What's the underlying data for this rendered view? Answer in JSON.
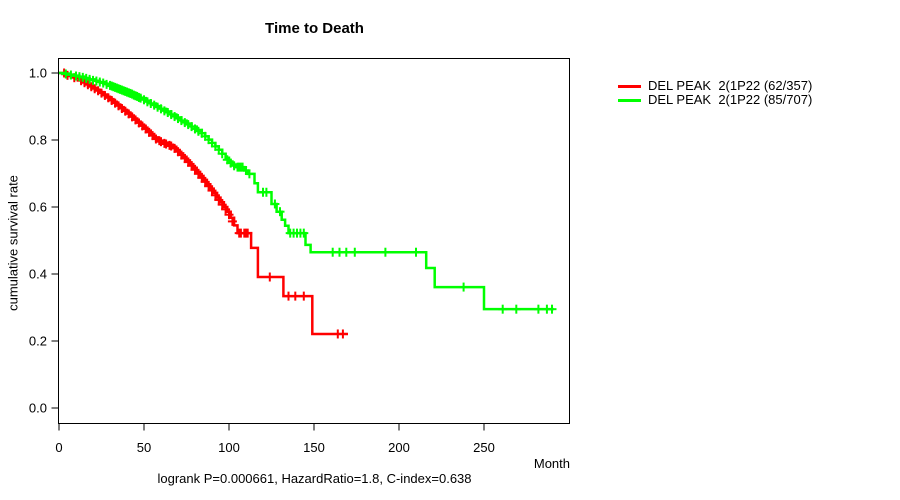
{
  "chart_data": {
    "type": "line",
    "subtype": "kaplan-meier-step",
    "title": "Time to Death",
    "xlabel": "Month",
    "ylabel": "cumulative survival rate",
    "annotation": "logrank P=0.000661, HazardRatio=1.8, C-index=0.638",
    "xlim": [
      0,
      300
    ],
    "ylim": [
      0.0,
      1.0
    ],
    "xticks": [
      0,
      50,
      100,
      150,
      200,
      250
    ],
    "yticks": [
      0.0,
      0.2,
      0.4,
      0.6,
      0.8,
      1.0
    ],
    "grid": false,
    "legend_position": "right-outside",
    "axis_color": "#000000",
    "series": [
      {
        "name": "DEL PEAK  2(1P22 (62/357)",
        "key": "red",
        "color": "#ff0000",
        "start": [
          0,
          1.0
        ],
        "end_month": 170,
        "steps": [
          [
            2,
            0.997
          ],
          [
            4,
            0.994
          ],
          [
            6,
            0.991
          ],
          [
            8,
            0.988
          ],
          [
            10,
            0.984
          ],
          [
            12,
            0.979
          ],
          [
            14,
            0.974
          ],
          [
            16,
            0.968
          ],
          [
            18,
            0.962
          ],
          [
            20,
            0.956
          ],
          [
            22,
            0.95
          ],
          [
            24,
            0.943
          ],
          [
            26,
            0.936
          ],
          [
            28,
            0.929
          ],
          [
            30,
            0.922
          ],
          [
            32,
            0.914
          ],
          [
            34,
            0.906
          ],
          [
            36,
            0.898
          ],
          [
            38,
            0.89
          ],
          [
            40,
            0.882
          ],
          [
            42,
            0.873
          ],
          [
            44,
            0.864
          ],
          [
            46,
            0.855
          ],
          [
            48,
            0.846
          ],
          [
            50,
            0.837
          ],
          [
            52,
            0.828
          ],
          [
            54,
            0.818
          ],
          [
            56,
            0.808
          ],
          [
            58,
            0.798
          ],
          [
            61,
            0.792
          ],
          [
            64,
            0.786
          ],
          [
            67,
            0.78
          ],
          [
            69,
            0.77
          ],
          [
            71,
            0.76
          ],
          [
            73,
            0.75
          ],
          [
            75,
            0.739
          ],
          [
            77,
            0.728
          ],
          [
            79,
            0.717
          ],
          [
            81,
            0.705
          ],
          [
            83,
            0.693
          ],
          [
            85,
            0.681
          ],
          [
            87,
            0.668
          ],
          [
            89,
            0.655
          ],
          [
            91,
            0.642
          ],
          [
            93,
            0.628
          ],
          [
            95,
            0.614
          ],
          [
            97,
            0.6
          ],
          [
            99,
            0.586
          ],
          [
            101,
            0.568
          ],
          [
            103,
            0.545
          ],
          [
            105,
            0.522
          ],
          [
            113,
            0.478
          ],
          [
            117,
            0.391
          ],
          [
            132,
            0.334
          ],
          [
            149,
            0.221
          ]
        ],
        "censors": [
          [
            3,
            1.0
          ],
          [
            5,
            0.993
          ],
          [
            9,
            0.986
          ],
          [
            13,
            0.977
          ],
          [
            15,
            0.971
          ],
          [
            17,
            0.965
          ],
          [
            19,
            0.959
          ],
          [
            21,
            0.953
          ],
          [
            23,
            0.947
          ],
          [
            25,
            0.94
          ],
          [
            27,
            0.933
          ],
          [
            29,
            0.926
          ],
          [
            31,
            0.918
          ],
          [
            33,
            0.91
          ],
          [
            35,
            0.902
          ],
          [
            37,
            0.894
          ],
          [
            39,
            0.886
          ],
          [
            41,
            0.878
          ],
          [
            43,
            0.869
          ],
          [
            45,
            0.86
          ],
          [
            47,
            0.851
          ],
          [
            49,
            0.842
          ],
          [
            51,
            0.833
          ],
          [
            53,
            0.823
          ],
          [
            55,
            0.813
          ],
          [
            57,
            0.803
          ],
          [
            59,
            0.798
          ],
          [
            60,
            0.795
          ],
          [
            62,
            0.79
          ],
          [
            63,
            0.788
          ],
          [
            65,
            0.784
          ],
          [
            66,
            0.782
          ],
          [
            68,
            0.775
          ],
          [
            70,
            0.765
          ],
          [
            72,
            0.755
          ],
          [
            74,
            0.745
          ],
          [
            76,
            0.734
          ],
          [
            78,
            0.723
          ],
          [
            80,
            0.711
          ],
          [
            82,
            0.699
          ],
          [
            84,
            0.687
          ],
          [
            86,
            0.675
          ],
          [
            88,
            0.662
          ],
          [
            90,
            0.649
          ],
          [
            92,
            0.635
          ],
          [
            94,
            0.621
          ],
          [
            96,
            0.607
          ],
          [
            98,
            0.593
          ],
          [
            100,
            0.577
          ],
          [
            102,
            0.557
          ],
          [
            106,
            0.522
          ],
          [
            107,
            0.522
          ],
          [
            109,
            0.522
          ],
          [
            110,
            0.522
          ],
          [
            111,
            0.522
          ],
          [
            124,
            0.391
          ],
          [
            135,
            0.334
          ],
          [
            139,
            0.334
          ],
          [
            144,
            0.334
          ],
          [
            164,
            0.221
          ],
          [
            167,
            0.221
          ]
        ]
      },
      {
        "name": "DEL PEAK  2(1P22 (85/707)",
        "key": "green",
        "color": "#00ff00",
        "start": [
          0,
          1.0
        ],
        "end_month": 291,
        "steps": [
          [
            3,
            0.998
          ],
          [
            6,
            0.995
          ],
          [
            9,
            0.992
          ],
          [
            12,
            0.989
          ],
          [
            15,
            0.985
          ],
          [
            18,
            0.981
          ],
          [
            21,
            0.977
          ],
          [
            24,
            0.973
          ],
          [
            27,
            0.968
          ],
          [
            30,
            0.963
          ],
          [
            33,
            0.957
          ],
          [
            36,
            0.951
          ],
          [
            39,
            0.945
          ],
          [
            42,
            0.939
          ],
          [
            45,
            0.932
          ],
          [
            48,
            0.925
          ],
          [
            51,
            0.917
          ],
          [
            54,
            0.909
          ],
          [
            57,
            0.901
          ],
          [
            60,
            0.893
          ],
          [
            63,
            0.885
          ],
          [
            66,
            0.876
          ],
          [
            69,
            0.867
          ],
          [
            72,
            0.858
          ],
          [
            75,
            0.849
          ],
          [
            78,
            0.84
          ],
          [
            81,
            0.83
          ],
          [
            84,
            0.82
          ],
          [
            86,
            0.811
          ],
          [
            88,
            0.801
          ],
          [
            90,
            0.791
          ],
          [
            92,
            0.781
          ],
          [
            94,
            0.771
          ],
          [
            96,
            0.759
          ],
          [
            98,
            0.747
          ],
          [
            100,
            0.736
          ],
          [
            102,
            0.727
          ],
          [
            104,
            0.719
          ],
          [
            109,
            0.709
          ],
          [
            111,
            0.699
          ],
          [
            115,
            0.671
          ],
          [
            117,
            0.644
          ],
          [
            125,
            0.609
          ],
          [
            128,
            0.586
          ],
          [
            131,
            0.562
          ],
          [
            133,
            0.544
          ],
          [
            135,
            0.522
          ],
          [
            145,
            0.487
          ],
          [
            148,
            0.465
          ],
          [
            216,
            0.418
          ],
          [
            221,
            0.361
          ],
          [
            250,
            0.295
          ]
        ],
        "censors": [
          [
            4,
            0.997
          ],
          [
            7,
            0.994
          ],
          [
            10,
            0.991
          ],
          [
            12,
            0.989
          ],
          [
            14,
            0.987
          ],
          [
            16,
            0.984
          ],
          [
            18,
            0.981
          ],
          [
            20,
            0.978
          ],
          [
            22,
            0.976
          ],
          [
            24,
            0.973
          ],
          [
            26,
            0.97
          ],
          [
            28,
            0.966
          ],
          [
            30,
            0.963
          ],
          [
            31,
            0.961
          ],
          [
            32,
            0.959
          ],
          [
            33,
            0.957
          ],
          [
            34,
            0.955
          ],
          [
            35,
            0.953
          ],
          [
            36,
            0.951
          ],
          [
            37,
            0.949
          ],
          [
            38,
            0.947
          ],
          [
            39,
            0.945
          ],
          [
            40,
            0.943
          ],
          [
            41,
            0.941
          ],
          [
            42,
            0.939
          ],
          [
            43,
            0.937
          ],
          [
            44,
            0.934
          ],
          [
            45,
            0.932
          ],
          [
            46,
            0.93
          ],
          [
            47,
            0.927
          ],
          [
            48,
            0.925
          ],
          [
            50,
            0.92
          ],
          [
            52,
            0.914
          ],
          [
            54,
            0.909
          ],
          [
            56,
            0.904
          ],
          [
            58,
            0.898
          ],
          [
            60,
            0.893
          ],
          [
            62,
            0.887
          ],
          [
            64,
            0.882
          ],
          [
            66,
            0.876
          ],
          [
            68,
            0.87
          ],
          [
            70,
            0.864
          ],
          [
            72,
            0.858
          ],
          [
            74,
            0.852
          ],
          [
            76,
            0.846
          ],
          [
            78,
            0.84
          ],
          [
            80,
            0.833
          ],
          [
            82,
            0.826
          ],
          [
            84,
            0.82
          ],
          [
            86,
            0.811
          ],
          [
            88,
            0.801
          ],
          [
            90,
            0.791
          ],
          [
            92,
            0.781
          ],
          [
            94,
            0.771
          ],
          [
            96,
            0.759
          ],
          [
            99,
            0.741
          ],
          [
            101,
            0.731
          ],
          [
            103,
            0.723
          ],
          [
            105,
            0.719
          ],
          [
            106,
            0.719
          ],
          [
            107,
            0.719
          ],
          [
            108,
            0.719
          ],
          [
            110,
            0.709
          ],
          [
            112,
            0.699
          ],
          [
            120,
            0.644
          ],
          [
            122,
            0.644
          ],
          [
            127,
            0.609
          ],
          [
            130,
            0.586
          ],
          [
            136,
            0.522
          ],
          [
            138,
            0.522
          ],
          [
            140,
            0.522
          ],
          [
            142,
            0.522
          ],
          [
            144,
            0.522
          ],
          [
            161,
            0.465
          ],
          [
            165,
            0.465
          ],
          [
            169,
            0.465
          ],
          [
            174,
            0.465
          ],
          [
            192,
            0.465
          ],
          [
            210,
            0.465
          ],
          [
            238,
            0.361
          ],
          [
            261,
            0.295
          ],
          [
            269,
            0.295
          ],
          [
            282,
            0.295
          ],
          [
            287,
            0.295
          ],
          [
            290,
            0.295
          ]
        ]
      }
    ]
  }
}
